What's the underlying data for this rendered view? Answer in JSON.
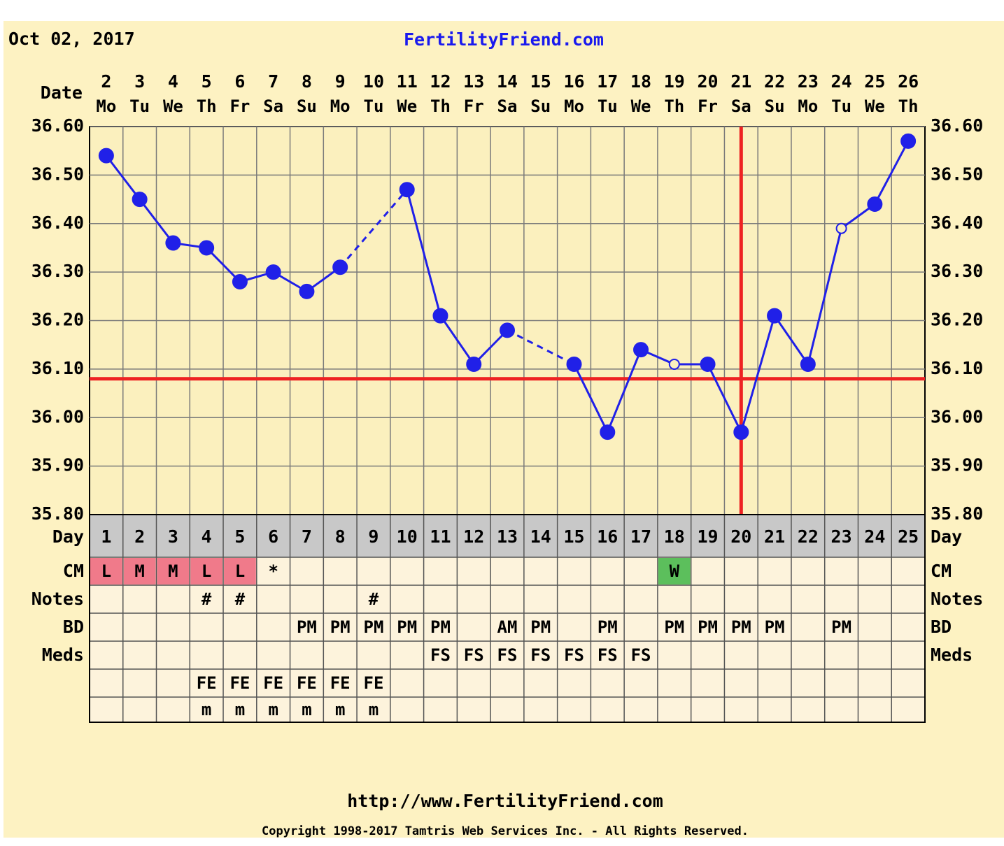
{
  "chart_data": {
    "type": "line",
    "date": "Oct 02, 2017",
    "site": "FertilityFriend.com",
    "date_label": "Date",
    "categories": [
      2,
      3,
      4,
      5,
      6,
      7,
      8,
      9,
      10,
      11,
      12,
      13,
      14,
      15,
      16,
      17,
      18,
      19,
      20,
      21,
      22,
      23,
      24,
      25,
      26
    ],
    "weekdays": [
      "Mo",
      "Tu",
      "We",
      "Th",
      "Fr",
      "Sa",
      "Su",
      "Mo",
      "Tu",
      "We",
      "Th",
      "Fr",
      "Sa",
      "Su",
      "Mo",
      "Tu",
      "We",
      "Th",
      "Fr",
      "Sa",
      "Su",
      "Mo",
      "Tu",
      "We",
      "Th"
    ],
    "day_label": "Day",
    "cycle_days": [
      1,
      2,
      3,
      4,
      5,
      6,
      7,
      8,
      9,
      10,
      11,
      12,
      13,
      14,
      15,
      16,
      17,
      18,
      19,
      20,
      21,
      22,
      23,
      24,
      25
    ],
    "values": [
      36.54,
      36.45,
      36.36,
      36.35,
      36.28,
      36.3,
      36.26,
      36.31,
      null,
      36.47,
      36.21,
      36.11,
      36.18,
      null,
      36.11,
      35.97,
      36.14,
      36.11,
      36.11,
      35.97,
      36.21,
      36.11,
      36.39,
      36.44,
      36.57
    ],
    "markers": [
      "filled",
      "filled",
      "filled",
      "filled",
      "filled",
      "filled",
      "filled",
      "filled",
      null,
      "filled",
      "filled",
      "filled",
      "filled",
      null,
      "filled",
      "filled",
      "filled",
      "open",
      "filled",
      "filled",
      "filled",
      "filled",
      "open",
      "filled",
      "filled"
    ],
    "color": "#2020e8",
    "ylim": [
      35.8,
      36.6
    ],
    "yticks": [
      {
        "value": 35.8,
        "label": "35.80"
      },
      {
        "value": 35.9,
        "label": "35.90"
      },
      {
        "value": 36.0,
        "label": "36.00"
      },
      {
        "value": 36.1,
        "label": "36.10"
      },
      {
        "value": 36.2,
        "label": "36.20"
      },
      {
        "value": 36.3,
        "label": "36.30"
      },
      {
        "value": 36.4,
        "label": "36.40"
      },
      {
        "value": 36.5,
        "label": "36.50"
      },
      {
        "value": 36.6,
        "label": "36.60"
      }
    ],
    "grid": true,
    "coverline": 36.08,
    "ovulation_day": 20,
    "marker_line_color": "#ee2222",
    "rows": [
      {
        "label": "CM",
        "cells": [
          "L",
          "M",
          "M",
          "L",
          "L",
          "*",
          null,
          null,
          null,
          null,
          null,
          null,
          null,
          null,
          null,
          null,
          null,
          "W",
          null,
          null,
          null,
          null,
          null,
          null,
          null
        ],
        "colors": [
          "#f07a8a",
          "#f07a8a",
          "#f07a8a",
          "#f07a8a",
          "#f07a8a",
          null,
          null,
          null,
          null,
          null,
          null,
          null,
          null,
          null,
          null,
          null,
          null,
          "#5cbf5c",
          null,
          null,
          null,
          null,
          null,
          null,
          null
        ]
      },
      {
        "label": "Notes",
        "cells": [
          null,
          null,
          null,
          "#",
          "#",
          null,
          null,
          null,
          "#",
          null,
          null,
          null,
          null,
          null,
          null,
          null,
          null,
          null,
          null,
          null,
          null,
          null,
          null,
          null,
          null
        ]
      },
      {
        "label": "BD",
        "cells": [
          null,
          null,
          null,
          null,
          null,
          null,
          "PM",
          "PM",
          "PM",
          "PM",
          "PM",
          null,
          "AM",
          "PM",
          null,
          "PM",
          null,
          "PM",
          "PM",
          "PM",
          "PM",
          null,
          "PM",
          null,
          null
        ]
      },
      {
        "label": "Meds",
        "cells": [
          null,
          null,
          null,
          null,
          null,
          null,
          null,
          null,
          null,
          null,
          "FS",
          "FS",
          "FS",
          "FS",
          "FS",
          "FS",
          "FS",
          null,
          null,
          null,
          null,
          null,
          null,
          null,
          null
        ]
      },
      {
        "label": null,
        "cells": [
          null,
          null,
          null,
          "FE",
          "FE",
          "FE",
          "FE",
          "FE",
          "FE",
          null,
          null,
          null,
          null,
          null,
          null,
          null,
          null,
          null,
          null,
          null,
          null,
          null,
          null,
          null,
          null
        ]
      },
      {
        "label": null,
        "cells": [
          null,
          null,
          null,
          "m",
          "m",
          "m",
          "m",
          "m",
          "m",
          null,
          null,
          null,
          null,
          null,
          null,
          null,
          null,
          null,
          null,
          null,
          null,
          null,
          null,
          null,
          null
        ]
      }
    ],
    "footer_url": "http://www.FertilityFriend.com",
    "copyright": "Copyright 1998-2017 Tamtris Web Services Inc. - All Rights Reserved."
  }
}
